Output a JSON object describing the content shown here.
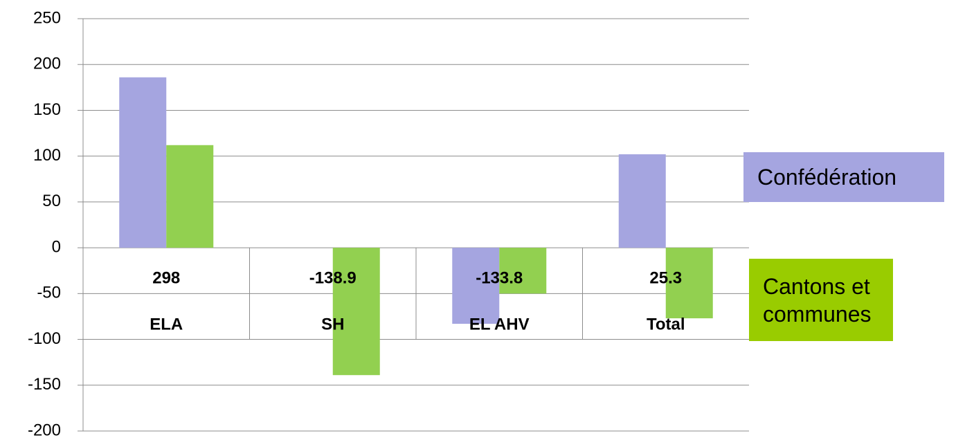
{
  "chart_data": {
    "type": "bar",
    "categories": [
      "ELA",
      "SH",
      "EL AHV",
      "Total"
    ],
    "totals": [
      298,
      -138.9,
      -133.8,
      25.3
    ],
    "series": [
      {
        "name": "Confédération",
        "color": "#a5a5e0",
        "values": [
          186,
          0,
          -83,
          102
        ]
      },
      {
        "name": "Cantons et communes",
        "color": "#92d050",
        "values": [
          112,
          -139,
          -50,
          -77
        ]
      }
    ],
    "legend_colors": [
      "#a5a5e0",
      "#99cc00"
    ],
    "ylim": [
      -200,
      250
    ],
    "yticks": [
      -200,
      -150,
      -100,
      -50,
      0,
      50,
      100,
      150,
      200,
      250
    ],
    "grid": true
  }
}
